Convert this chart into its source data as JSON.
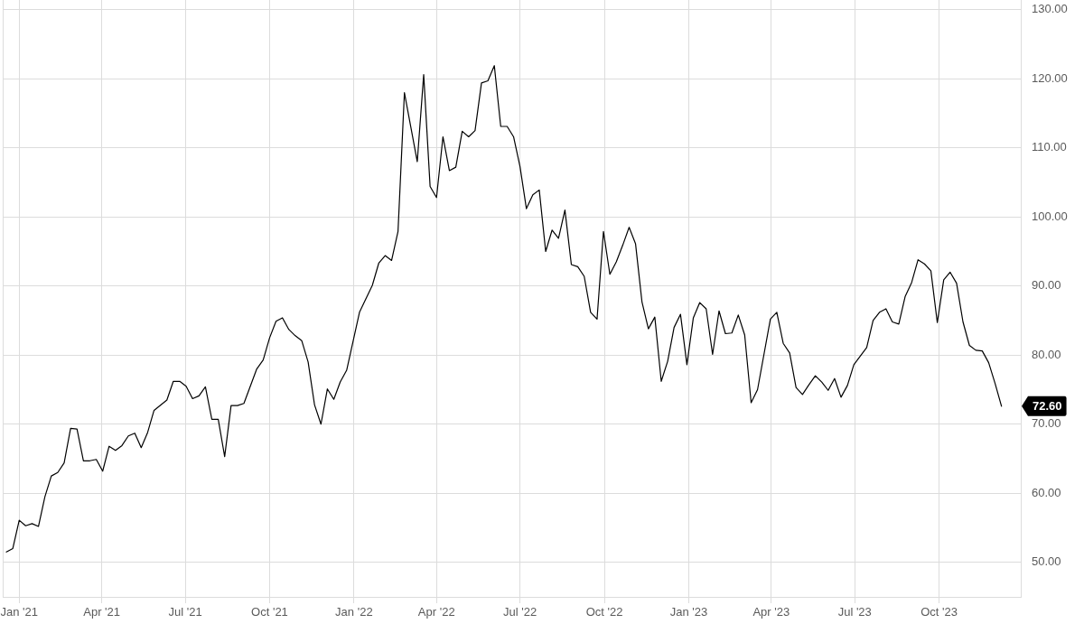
{
  "chart_data": {
    "type": "line",
    "x": [
      "2020-12-18",
      "2020-12-25",
      "2021-01-01",
      "2021-01-08",
      "2021-01-15",
      "2021-01-22",
      "2021-01-29",
      "2021-02-05",
      "2021-02-12",
      "2021-02-19",
      "2021-02-26",
      "2021-03-05",
      "2021-03-12",
      "2021-03-19",
      "2021-03-26",
      "2021-04-02",
      "2021-04-09",
      "2021-04-16",
      "2021-04-23",
      "2021-04-30",
      "2021-05-07",
      "2021-05-14",
      "2021-05-21",
      "2021-05-28",
      "2021-06-11",
      "2021-06-18",
      "2021-06-25",
      "2021-07-02",
      "2021-07-09",
      "2021-07-16",
      "2021-07-23",
      "2021-07-30",
      "2021-08-06",
      "2021-08-13",
      "2021-08-20",
      "2021-08-27",
      "2021-09-03",
      "2021-09-17",
      "2021-09-24",
      "2021-10-01",
      "2021-10-08",
      "2021-10-15",
      "2021-10-22",
      "2021-10-29",
      "2021-11-05",
      "2021-11-12",
      "2021-11-19",
      "2021-11-26",
      "2021-12-03",
      "2021-12-10",
      "2021-12-17",
      "2021-12-24",
      "2022-01-07",
      "2022-01-21",
      "2022-01-28",
      "2022-02-04",
      "2022-02-11",
      "2022-02-18",
      "2022-02-25",
      "2022-03-04",
      "2022-03-11",
      "2022-03-18",
      "2022-03-25",
      "2022-04-01",
      "2022-04-08",
      "2022-04-15",
      "2022-04-22",
      "2022-04-29",
      "2022-05-06",
      "2022-05-13",
      "2022-05-20",
      "2022-05-27",
      "2022-06-03",
      "2022-06-10",
      "2022-06-17",
      "2022-06-24",
      "2022-07-01",
      "2022-07-08",
      "2022-07-15",
      "2022-07-22",
      "2022-07-29",
      "2022-08-05",
      "2022-08-12",
      "2022-08-19",
      "2022-08-26",
      "2022-09-02",
      "2022-09-09",
      "2022-09-16",
      "2022-09-23",
      "2022-09-30",
      "2022-10-07",
      "2022-10-14",
      "2022-10-21",
      "2022-10-28",
      "2022-11-04",
      "2022-11-11",
      "2022-11-18",
      "2022-11-25",
      "2022-12-02",
      "2022-12-09",
      "2022-12-16",
      "2022-12-23",
      "2022-12-30",
      "2023-01-06",
      "2023-01-13",
      "2023-01-20",
      "2023-01-27",
      "2023-02-03",
      "2023-02-10",
      "2023-02-17",
      "2023-02-24",
      "2023-03-03",
      "2023-03-10",
      "2023-03-17",
      "2023-03-31",
      "2023-04-07",
      "2023-04-14",
      "2023-04-21",
      "2023-04-28",
      "2023-05-05",
      "2023-05-12",
      "2023-05-19",
      "2023-05-26",
      "2023-06-02",
      "2023-06-09",
      "2023-06-16",
      "2023-06-23",
      "2023-06-30",
      "2023-07-14",
      "2023-07-21",
      "2023-07-28",
      "2023-08-04",
      "2023-08-11",
      "2023-08-18",
      "2023-08-25",
      "2023-09-01",
      "2023-09-08",
      "2023-09-15",
      "2023-09-22",
      "2023-09-29",
      "2023-10-06",
      "2023-10-13",
      "2023-10-20",
      "2023-10-27",
      "2023-11-03",
      "2023-11-10",
      "2023-11-17",
      "2023-11-24",
      "2023-12-01",
      "2023-12-08"
    ],
    "series": [
      {
        "color": "#000000",
        "values": [
          51.5,
          52.0,
          56.1,
          55.3,
          55.6,
          55.2,
          59.5,
          62.5,
          63.0,
          64.4,
          69.4,
          69.3,
          64.7,
          64.7,
          64.9,
          63.2,
          66.8,
          66.2,
          66.9,
          68.3,
          68.7,
          66.6,
          68.8,
          72.0,
          73.5,
          76.2,
          76.2,
          75.5,
          73.7,
          74.1,
          75.4,
          70.7,
          70.7,
          65.3,
          72.7,
          72.7,
          73.0,
          78.0,
          79.3,
          82.5,
          84.9,
          85.4,
          83.7,
          82.8,
          82.1,
          79.0,
          72.8,
          70.0,
          75.1,
          73.6,
          76.1,
          77.8,
          86.2,
          90.1,
          93.3,
          94.4,
          93.7,
          97.9,
          118.0,
          113.0,
          108.0,
          120.6,
          104.4,
          102.8,
          111.6,
          106.7,
          107.2,
          112.4,
          111.6,
          112.5,
          119.4,
          119.7,
          121.9,
          113.1,
          113.1,
          111.6,
          107.3,
          101.2,
          103.2,
          103.9,
          95.0,
          98.1,
          96.9,
          101.0,
          93.1,
          92.8,
          91.4,
          86.2,
          85.2,
          97.9,
          91.7,
          93.5,
          95.9,
          98.5,
          96.1,
          87.7,
          83.8,
          85.5,
          76.2,
          79.1,
          84.0,
          85.9,
          78.6,
          85.4,
          87.6,
          86.7,
          80.1,
          86.4,
          83.1,
          83.2,
          85.8,
          82.9,
          73.1,
          75.0,
          85.2,
          86.2,
          81.7,
          80.3,
          75.3,
          74.3,
          75.7,
          77.0,
          76.1,
          74.9,
          76.6,
          73.9,
          75.6,
          78.6,
          81.1,
          85.0,
          86.2,
          86.7,
          84.8,
          84.5,
          88.5,
          90.5,
          93.8,
          93.2,
          92.2,
          84.7,
          90.9,
          92.0,
          90.4,
          84.8,
          81.4,
          80.7,
          80.6,
          78.9,
          75.9,
          72.6
        ]
      }
    ],
    "annotations": [
      "72.60"
    ],
    "xlim": [
      "2020-12-14",
      "2023-12-29"
    ],
    "xticks": [
      {
        "value": "2021-01-01",
        "label": "Jan '21"
      },
      {
        "value": "2021-04-01",
        "label": "Apr '21"
      },
      {
        "value": "2021-07-01",
        "label": "Jul '21"
      },
      {
        "value": "2021-10-01",
        "label": "Oct '21"
      },
      {
        "value": "2022-01-01",
        "label": "Jan '22"
      },
      {
        "value": "2022-04-01",
        "label": "Apr '22"
      },
      {
        "value": "2022-07-01",
        "label": "Jul '22"
      },
      {
        "value": "2022-10-01",
        "label": "Oct '22"
      },
      {
        "value": "2023-01-01",
        "label": "Jan '23"
      },
      {
        "value": "2023-04-01",
        "label": "Apr '23"
      },
      {
        "value": "2023-07-01",
        "label": "Jul '23"
      },
      {
        "value": "2023-10-01",
        "label": "Oct '23"
      }
    ],
    "ylim": [
      45,
      131.4
    ],
    "yticks": [
      {
        "value": 50,
        "label": "50.00"
      },
      {
        "value": 60,
        "label": "60.00"
      },
      {
        "value": 70,
        "label": "70.00"
      },
      {
        "value": 80,
        "label": "80.00"
      },
      {
        "value": 90,
        "label": "90.00"
      },
      {
        "value": 100,
        "label": "100.00"
      },
      {
        "value": 110,
        "label": "110.00"
      },
      {
        "value": 120,
        "label": "120.00"
      },
      {
        "value": 130,
        "label": "130.00"
      }
    ],
    "grid": true,
    "legend": false,
    "marker": "none",
    "line_style": "solid"
  }
}
